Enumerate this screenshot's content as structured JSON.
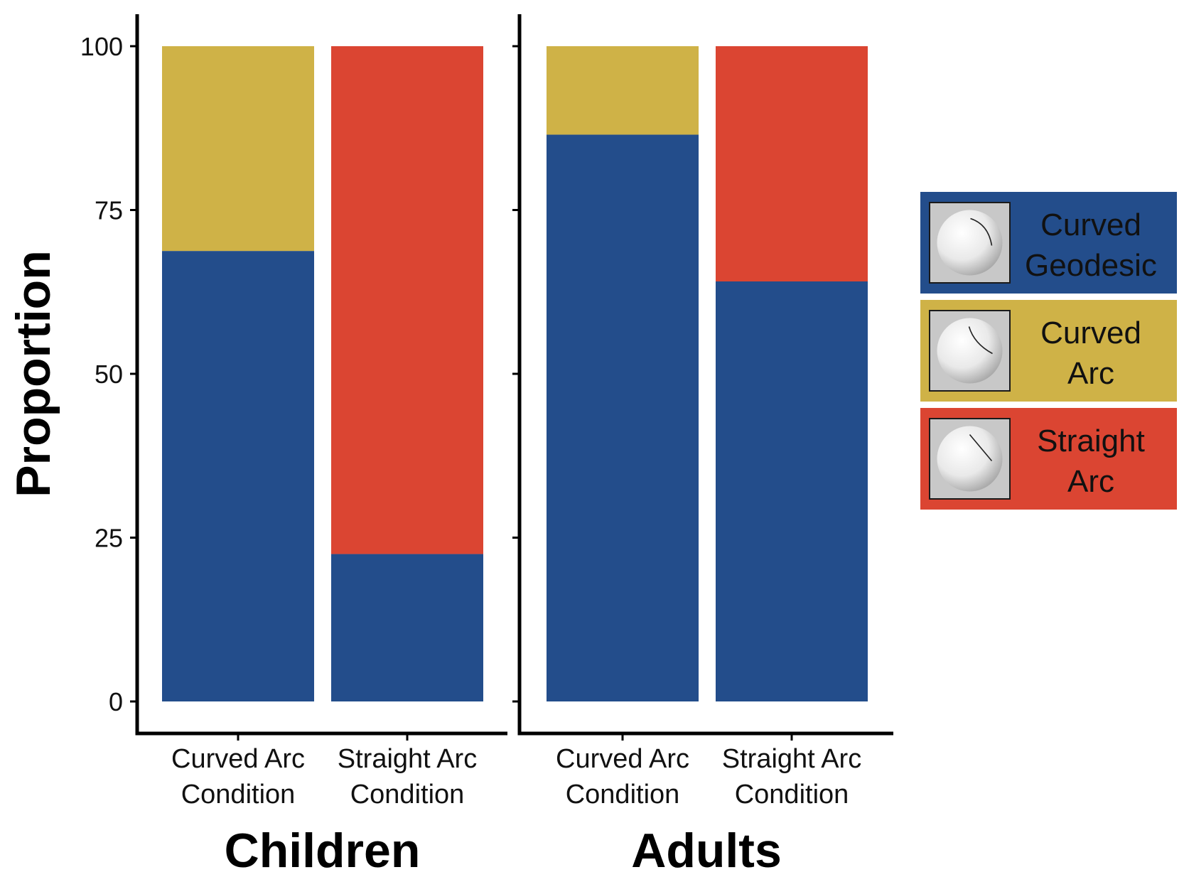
{
  "chart_data": {
    "type": "bar",
    "stacked": true,
    "ylabel": "Proportion",
    "ylim": [
      0,
      100
    ],
    "yticks": [
      0,
      25,
      50,
      75,
      100
    ],
    "categories": [
      "Curved Arc\nCondition",
      "Straight Arc\nCondition"
    ],
    "panels": [
      {
        "label": "Children",
        "stacks": [
          [
            {
              "series": "Curved Geodesic",
              "value": 68.75
            },
            {
              "series": "Curved Arc",
              "value": 31.25
            }
          ],
          [
            {
              "series": "Curved Geodesic",
              "value": 22.5
            },
            {
              "series": "Straight Arc",
              "value": 77.5
            }
          ]
        ]
      },
      {
        "label": "Adults",
        "stacks": [
          [
            {
              "series": "Curved Geodesic",
              "value": 86.5
            },
            {
              "series": "Curved Arc",
              "value": 13.5
            }
          ],
          [
            {
              "series": "Curved Geodesic",
              "value": 64.1
            },
            {
              "series": "Straight Arc",
              "value": 35.9
            }
          ]
        ]
      }
    ],
    "legend": {
      "position": "right",
      "items": [
        {
          "name": "Curved Geodesic",
          "lines": [
            "Curved",
            "Geodesic"
          ],
          "color": "#234d8b",
          "icon": "sphere-geodesic-icon"
        },
        {
          "name": "Curved Arc",
          "lines": [
            "Curved",
            "Arc"
          ],
          "color": "#cfb247",
          "icon": "sphere-curved-arc-icon"
        },
        {
          "name": "Straight Arc",
          "lines": [
            "Straight",
            "Arc"
          ],
          "color": "#db4532",
          "icon": "sphere-straight-arc-icon"
        }
      ]
    },
    "grid": false
  }
}
